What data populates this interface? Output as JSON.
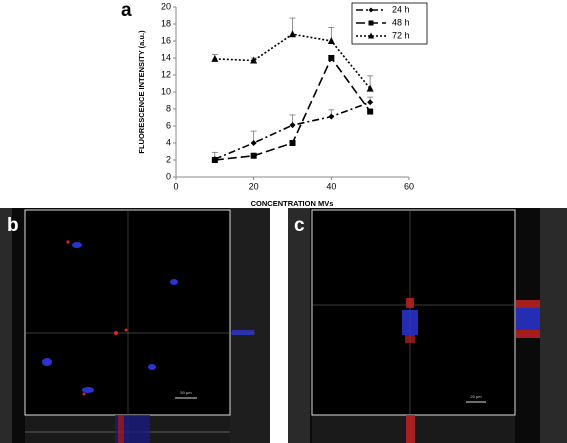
{
  "chart_data": {
    "type": "line",
    "panel_label": "a",
    "y_label": "FLUORESCENCE INTENSITY (a.u.)",
    "x_label": "CONCENTRATION MVs",
    "x": [
      10,
      20,
      30,
      40,
      50
    ],
    "series": [
      {
        "name": "24 h",
        "color": "#000000",
        "dash": "7 3 2 3",
        "marker": "diamond",
        "values": [
          2.1,
          4.0,
          6.1,
          7.1,
          8.8
        ],
        "errors": [
          0.8,
          1.4,
          1.2,
          0.8,
          0.6
        ]
      },
      {
        "name": "48 h",
        "color": "#000000",
        "dash": "9 4",
        "marker": "square",
        "values": [
          2.0,
          2.5,
          4.0,
          14.0,
          7.7
        ],
        "errors": [
          0.0,
          0.0,
          0.0,
          0.3,
          0.0
        ]
      },
      {
        "name": "72 h",
        "color": "#000000",
        "dash": "2 2",
        "marker": "triangle",
        "values": [
          13.9,
          13.7,
          16.8,
          16.0,
          10.4
        ],
        "errors": [
          0.5,
          0.3,
          1.9,
          1.6,
          1.5
        ]
      }
    ],
    "xlim": [
      0,
      60
    ],
    "xticks": [
      0,
      20,
      40,
      60
    ],
    "ylim": [
      0,
      20
    ],
    "yticks": [
      0,
      2,
      4,
      6,
      8,
      10,
      12,
      14,
      16,
      18,
      20
    ],
    "grid": false,
    "legend": "top-right"
  },
  "images": [
    {
      "label": "b",
      "scale_bar": "50 μm"
    },
    {
      "label": "c",
      "scale_bar": "20 μm"
    }
  ]
}
